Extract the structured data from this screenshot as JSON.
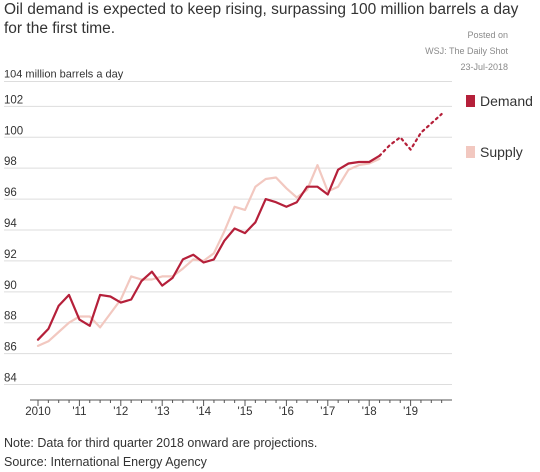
{
  "title": "Oil demand is expected to keep rising, surpassing 100 million barrels a day for the first time.",
  "watermark": {
    "line1": "Posted on",
    "line2": "WSJ: The Daily Shot",
    "line3": "23-Jul-2018"
  },
  "note": "Note: Data for third quarter 2018 onward are projections.",
  "source": "Source: International Energy Agency",
  "chart_data": {
    "type": "line",
    "ylabel": "104 million barrels a day",
    "ylim": [
      83,
      105
    ],
    "xlim": [
      2010,
      2020
    ],
    "y_ticks": [
      "84",
      "86",
      "88",
      "90",
      "92",
      "94",
      "96",
      "98",
      "100",
      "102"
    ],
    "y_tick_values": [
      84,
      86,
      88,
      90,
      92,
      94,
      96,
      98,
      100,
      102
    ],
    "x_ticks": [
      "2010",
      "'11",
      "'12",
      "'13",
      "'14",
      "'15",
      "'16",
      "'17",
      "'18",
      "'19"
    ],
    "x_tick_values": [
      2010,
      2011,
      2012,
      2013,
      2014,
      2015,
      2016,
      2017,
      2018,
      2019
    ],
    "grid": true,
    "legend_position": "right",
    "colors": {
      "demand": "#b5203a",
      "supply": "#f2c8c0",
      "grid": "#dddddd"
    },
    "series": [
      {
        "name": "Supply",
        "x": [
          2010.0,
          2010.25,
          2010.5,
          2010.75,
          2011.0,
          2011.25,
          2011.5,
          2011.75,
          2012.0,
          2012.25,
          2012.5,
          2012.75,
          2013.0,
          2013.25,
          2013.5,
          2013.75,
          2014.0,
          2014.25,
          2014.5,
          2014.75,
          2015.0,
          2015.25,
          2015.5,
          2015.75,
          2016.0,
          2016.25,
          2016.5,
          2016.75,
          2017.0,
          2017.25,
          2017.5,
          2017.75,
          2018.0,
          2018.25
        ],
        "values": [
          86.5,
          86.8,
          87.4,
          88.0,
          88.4,
          88.4,
          87.7,
          88.6,
          89.5,
          91.0,
          90.8,
          90.8,
          91.0,
          91.0,
          91.5,
          92.1,
          92.0,
          92.5,
          93.9,
          95.5,
          95.3,
          96.8,
          97.3,
          97.4,
          96.7,
          96.1,
          96.6,
          98.2,
          96.5,
          96.8,
          97.9,
          98.2,
          98.3,
          98.6
        ]
      },
      {
        "name": "Demand",
        "x": [
          2010.0,
          2010.25,
          2010.5,
          2010.75,
          2011.0,
          2011.25,
          2011.5,
          2011.75,
          2012.0,
          2012.25,
          2012.5,
          2012.75,
          2013.0,
          2013.25,
          2013.5,
          2013.75,
          2014.0,
          2014.25,
          2014.5,
          2014.75,
          2015.0,
          2015.25,
          2015.5,
          2015.75,
          2016.0,
          2016.25,
          2016.5,
          2016.75,
          2017.0,
          2017.25,
          2017.5,
          2017.75,
          2018.0,
          2018.25
        ],
        "values": [
          86.9,
          87.6,
          89.1,
          89.8,
          88.2,
          87.8,
          89.8,
          89.7,
          89.3,
          89.5,
          90.7,
          91.3,
          90.4,
          90.9,
          92.1,
          92.4,
          91.9,
          92.1,
          93.3,
          94.1,
          93.8,
          94.5,
          96.0,
          95.8,
          95.5,
          95.8,
          96.8,
          96.8,
          96.3,
          97.9,
          98.3,
          98.4,
          98.4,
          98.8
        ]
      },
      {
        "name": "Demand projection",
        "x": [
          2018.25,
          2018.5,
          2018.75,
          2019.0,
          2019.25,
          2019.5,
          2019.75
        ],
        "values": [
          98.8,
          99.5,
          100.0,
          99.2,
          100.3,
          100.9,
          101.5
        ]
      }
    ]
  }
}
